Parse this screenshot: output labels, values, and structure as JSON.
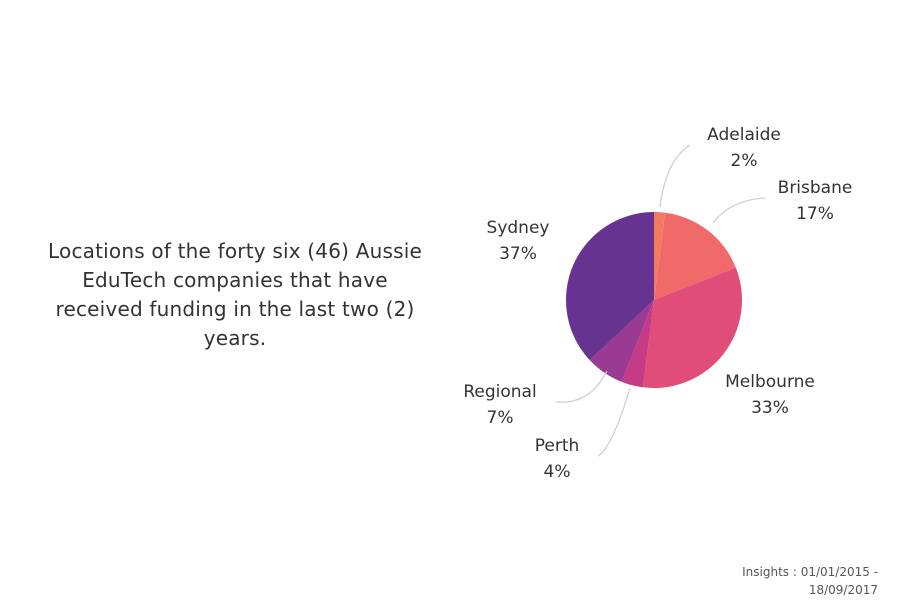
{
  "chart_data": {
    "type": "pie",
    "title": "Locations of the forty six (46) Aussie EduTech companies that have received funding in the last two (2) years.",
    "slices": [
      {
        "label": "Adelaide",
        "value": 2,
        "display": "2%",
        "color": "#f47a5f"
      },
      {
        "label": "Brisbane",
        "value": 17,
        "display": "17%",
        "color": "#f06a6a"
      },
      {
        "label": "Melbourne",
        "value": 33,
        "display": "33%",
        "color": "#df4d78"
      },
      {
        "label": "Perth",
        "value": 4,
        "display": "4%",
        "color": "#c53b86"
      },
      {
        "label": "Regional",
        "value": 7,
        "display": "7%",
        "color": "#9b3a92"
      },
      {
        "label": "Sydney",
        "value": 37,
        "display": "37%",
        "color": "#663391"
      }
    ]
  },
  "footer": {
    "line1": "Insights : 01/01/2015 -",
    "line2": "18/09/2017"
  }
}
